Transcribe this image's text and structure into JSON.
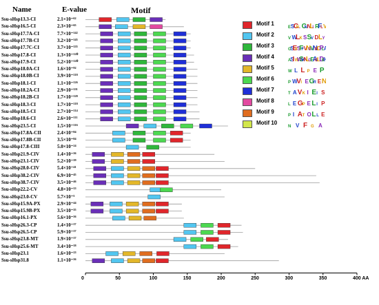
{
  "headers": {
    "name": "Name",
    "evalue": "E-value",
    "motif": "Motif"
  },
  "axis": {
    "ticks": [
      "0",
      "50",
      "100",
      "150",
      "200",
      "250",
      "300",
      "350",
      "400 AA"
    ],
    "max": 400
  },
  "legend": [
    {
      "label": "Motif 1",
      "color": "#e0262b",
      "logo": "ESCN.CNNLIRFLV"
    },
    {
      "label": "Motif 2",
      "color": "#52c6f0",
      "logo": "VWLKSSVDLY"
    },
    {
      "label": "Motif 3",
      "color": "#2fb73b",
      "logo": "GSEVSFFVNGVNRDPLA"
    },
    {
      "label": "Motif 4",
      "color": "#6a2fb8",
      "logo": "ASIWWSWNLGEAGLDSH"
    },
    {
      "label": "Motif 5",
      "color": "#e3b72a",
      "logo": "WLLPEP"
    },
    {
      "label": "Motif 6",
      "color": "#4cd850",
      "logo": "PWVIEGREN"
    },
    {
      "label": "Motif 7",
      "color": "#1f2fd8",
      "logo": "TAVKIEIS"
    },
    {
      "label": "Motif 8",
      "color": "#e24aa0",
      "logo": "LEGPELIP"
    },
    {
      "label": "Motif 9",
      "color": "#e06d1f",
      "logo": "PIATOLLE"
    },
    {
      "label": "Motif 10",
      "color": "#d2e64a",
      "logo": "NVFGA"
    }
  ],
  "rows": [
    {
      "name": "Ssu-sHsp13.3-CI",
      "ev": "2.1×10⁻⁶²",
      "len": 118,
      "m": [
        [
          20,
          1
        ],
        [
          46,
          2
        ],
        [
          70,
          3
        ],
        [
          95,
          4
        ]
      ]
    },
    {
      "name": "Ssu-sHsp16.5-CI",
      "ev": "2.3×10⁻⁶⁵",
      "len": 145,
      "m": [
        [
          20,
          4
        ],
        [
          44,
          2
        ],
        [
          70,
          5
        ],
        [
          95,
          8
        ]
      ]
    },
    {
      "name": "Ssu-sHsp17.7A-CI",
      "ev": "7.7×10⁻¹⁴²",
      "len": 155,
      "m": [
        [
          22,
          4
        ],
        [
          48,
          2
        ],
        [
          72,
          3
        ],
        [
          100,
          6
        ],
        [
          130,
          7
        ]
      ]
    },
    {
      "name": "Ssu-sHsp17.7B-CI",
      "ev": "3.2×10⁻¹⁴⁵",
      "len": 155,
      "m": [
        [
          22,
          4
        ],
        [
          48,
          2
        ],
        [
          72,
          3
        ],
        [
          100,
          6
        ],
        [
          130,
          7
        ]
      ]
    },
    {
      "name": "Ssu-sHsp17.7C-CI",
      "ev": "3.7×10⁻¹³⁵",
      "len": 155,
      "m": [
        [
          22,
          4
        ],
        [
          48,
          2
        ],
        [
          72,
          3
        ],
        [
          100,
          6
        ],
        [
          130,
          7
        ]
      ]
    },
    {
      "name": "Ssu-sHsp17.8-CI",
      "ev": "1.3×10⁻¹²⁰",
      "len": 160,
      "m": [
        [
          22,
          4
        ],
        [
          48,
          2
        ],
        [
          72,
          3
        ],
        [
          100,
          6
        ],
        [
          130,
          7
        ]
      ]
    },
    {
      "name": "Ssu-sHsp17.9-CI",
      "ev": "5.2×10⁻¹²⁰",
      "len": 160,
      "m": [
        [
          22,
          4
        ],
        [
          48,
          2
        ],
        [
          72,
          3
        ],
        [
          100,
          6
        ],
        [
          130,
          7
        ]
      ]
    },
    {
      "name": "Ssu-sHsp18.0A-CI",
      "ev": "1.6×10⁻⁹²",
      "len": 165,
      "m": [
        [
          22,
          4
        ],
        [
          48,
          2
        ],
        [
          72,
          3
        ],
        [
          100,
          6
        ],
        [
          130,
          7
        ]
      ]
    },
    {
      "name": "Ssu-sHsp18.0B-CI",
      "ev": "3.9×10⁻¹¹⁸",
      "len": 165,
      "m": [
        [
          22,
          4
        ],
        [
          48,
          2
        ],
        [
          72,
          3
        ],
        [
          100,
          6
        ],
        [
          130,
          7
        ]
      ]
    },
    {
      "name": "Ssu-sHsp18.1-CI",
      "ev": "1.1×10⁻¹²⁶",
      "len": 165,
      "m": [
        [
          22,
          4
        ],
        [
          48,
          2
        ],
        [
          72,
          3
        ],
        [
          100,
          6
        ],
        [
          130,
          7
        ]
      ]
    },
    {
      "name": "Ssu-sHsp18.2A-CI",
      "ev": "2.9×10⁻¹³¹",
      "len": 165,
      "m": [
        [
          22,
          4
        ],
        [
          48,
          2
        ],
        [
          72,
          3
        ],
        [
          100,
          6
        ],
        [
          130,
          7
        ]
      ]
    },
    {
      "name": "Ssu-sHsp18.2B-CI",
      "ev": "1.7×10⁻¹²⁸",
      "len": 165,
      "m": [
        [
          22,
          4
        ],
        [
          48,
          2
        ],
        [
          72,
          3
        ],
        [
          100,
          6
        ],
        [
          130,
          7
        ]
      ]
    },
    {
      "name": "Ssu-sHsp18.3-CI",
      "ev": "1.7×10⁻¹¹⁸",
      "len": 165,
      "m": [
        [
          22,
          4
        ],
        [
          48,
          2
        ],
        [
          72,
          3
        ],
        [
          100,
          6
        ],
        [
          130,
          7
        ]
      ]
    },
    {
      "name": "Ssu-sHsp18.5-CI",
      "ev": "2.7×10⁻¹¹⁴",
      "len": 168,
      "m": [
        [
          22,
          4
        ],
        [
          48,
          2
        ],
        [
          72,
          3
        ],
        [
          100,
          6
        ],
        [
          130,
          7
        ]
      ]
    },
    {
      "name": "Ssu-sHsp18.6-CI",
      "ev": "2.6×10⁻¹¹¹",
      "len": 168,
      "m": [
        [
          22,
          4
        ],
        [
          48,
          2
        ],
        [
          72,
          3
        ],
        [
          100,
          6
        ],
        [
          130,
          7
        ]
      ]
    },
    {
      "name": "Ssu-sHsp23.5-CI",
      "ev": "1.5×10⁻¹¹⁶",
      "len": 210,
      "m": [
        [
          60,
          4
        ],
        [
          86,
          2
        ],
        [
          112,
          3
        ],
        [
          140,
          6
        ],
        [
          168,
          7
        ]
      ]
    },
    {
      "name": "Ssu-sHsp17.8A-CII",
      "ev": "2.4×10⁻⁸⁴",
      "len": 155,
      "m": [
        [
          40,
          2
        ],
        [
          70,
          3
        ],
        [
          100,
          6
        ],
        [
          125,
          1
        ]
      ]
    },
    {
      "name": "Ssu-sHsp17.8B-CII",
      "ev": "3.5×10⁻⁸⁴",
      "len": 155,
      "m": [
        [
          40,
          2
        ],
        [
          70,
          3
        ],
        [
          100,
          6
        ],
        [
          125,
          1
        ]
      ]
    },
    {
      "name": "Ssu-sHsp17.8-CIII",
      "ev": "5.0×10⁻²⁴",
      "len": 155,
      "m": [
        [
          60,
          2
        ],
        [
          90,
          3
        ]
      ]
    },
    {
      "name": "Ssu-sHsp21.9-CIV",
      "ev": "1.4×10⁻³⁶",
      "len": 190,
      "m": [
        [
          10,
          4
        ],
        [
          38,
          5
        ],
        [
          62,
          9
        ],
        [
          84,
          1
        ]
      ]
    },
    {
      "name": "Ssu-sHsp23.1-CIV",
      "ev": "5.2×10⁻³⁹",
      "len": 205,
      "m": [
        [
          10,
          4
        ],
        [
          38,
          5
        ],
        [
          62,
          9
        ],
        [
          84,
          1
        ]
      ]
    },
    {
      "name": "Ssu-sHsp28.0-CIV",
      "ev": "5.4×10⁻⁴¹",
      "len": 250,
      "m": [
        [
          12,
          4
        ],
        [
          38,
          2
        ],
        [
          62,
          5
        ],
        [
          84,
          9
        ],
        [
          104,
          1
        ]
      ]
    },
    {
      "name": "Ssu-sHsp38.2-CIV",
      "ev": "6.9×10⁻⁴⁵",
      "len": 340,
      "m": [
        [
          12,
          4
        ],
        [
          38,
          2
        ],
        [
          62,
          5
        ],
        [
          84,
          9
        ],
        [
          104,
          1
        ]
      ]
    },
    {
      "name": "Ssu-sHsp38.7-CIV",
      "ev": "3.5×10⁻⁴⁶",
      "len": 345,
      "m": [
        [
          12,
          4
        ],
        [
          38,
          2
        ],
        [
          62,
          5
        ],
        [
          84,
          9
        ],
        [
          104,
          1
        ]
      ]
    },
    {
      "name": "Ssu-sHsp22.2-CV",
      "ev": "4.8×10⁻¹³",
      "len": 200,
      "m": [
        [
          95,
          2
        ],
        [
          110,
          6
        ]
      ]
    },
    {
      "name": "Ssu-sHsp23.0-CV",
      "ev": "5.7×10⁻⁵",
      "len": 205,
      "m": [
        [
          92,
          2
        ]
      ]
    },
    {
      "name": "Ssu-sHsp15.9A-PX",
      "ev": "2.9×10⁻⁴⁴",
      "len": 142,
      "m": [
        [
          8,
          4
        ],
        [
          36,
          2
        ],
        [
          60,
          5
        ],
        [
          84,
          9
        ],
        [
          104,
          1
        ]
      ]
    },
    {
      "name": "Ssu-sHsp15.9B-PX",
      "ev": "3.5×10⁻³⁵",
      "len": 142,
      "m": [
        [
          8,
          4
        ],
        [
          36,
          2
        ],
        [
          60,
          5
        ],
        [
          84,
          9
        ],
        [
          104,
          1
        ]
      ]
    },
    {
      "name": "Ssu-sHsp16.1-PX",
      "ev": "5.6×10⁻³⁶",
      "len": 145,
      "m": [
        [
          40,
          2
        ],
        [
          64,
          5
        ],
        [
          86,
          9
        ]
      ]
    },
    {
      "name": "Ssu-sHsp26.3-CP",
      "ev": "1.4×10⁻¹⁷",
      "len": 230,
      "m": [
        [
          145,
          2
        ],
        [
          170,
          6
        ],
        [
          195,
          1
        ]
      ]
    },
    {
      "name": "Ssu-sHsp26.5-CP",
      "ev": "5.9×10⁻¹⁷",
      "len": 232,
      "m": [
        [
          145,
          2
        ],
        [
          170,
          6
        ],
        [
          195,
          1
        ]
      ]
    },
    {
      "name": "Ssu-sHsp23.8-MT",
      "ev": "1.9×10⁻¹⁷",
      "len": 210,
      "m": [
        [
          130,
          2
        ],
        [
          155,
          6
        ],
        [
          178,
          1
        ]
      ]
    },
    {
      "name": "Ssu-sHsp25.6-MT",
      "ev": "3.4×10⁻¹⁸",
      "len": 225,
      "m": [
        [
          145,
          2
        ],
        [
          170,
          6
        ],
        [
          195,
          1
        ]
      ]
    },
    {
      "name": "Ssu-sHsp23.1",
      "ev": "1.6×10⁻²³",
      "len": 205,
      "m": [
        [
          30,
          2
        ],
        [
          55,
          5
        ],
        [
          80,
          9
        ],
        [
          105,
          1
        ]
      ]
    },
    {
      "name": "Ssu-sHsp31.8",
      "ev": "1.1×10⁻³⁶",
      "len": 285,
      "m": [
        [
          10,
          4
        ],
        [
          38,
          2
        ],
        [
          62,
          5
        ],
        [
          84,
          9
        ],
        [
          104,
          1
        ]
      ]
    }
  ]
}
